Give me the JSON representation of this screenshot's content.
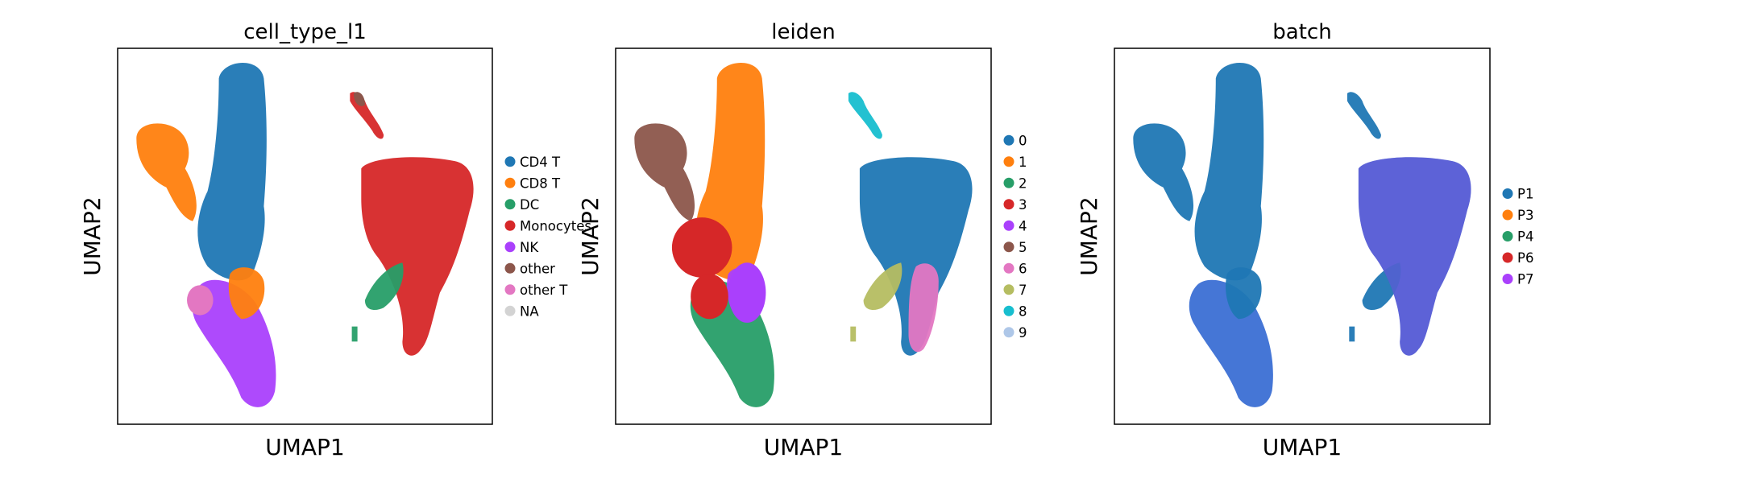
{
  "chart_data": [
    {
      "type": "scatter",
      "title": "cell_type_l1",
      "xlabel": "UMAP1",
      "ylabel": "UMAP2",
      "legend_position": "right",
      "legend_entries": [
        {
          "label": "CD4 T",
          "color": "#1f77b4"
        },
        {
          "label": "CD8 T",
          "color": "#ff7f0e"
        },
        {
          "label": "DC",
          "color": "#279e68"
        },
        {
          "label": "Monocytes",
          "color": "#d62728"
        },
        {
          "label": "NK",
          "color": "#aa40fc"
        },
        {
          "label": "other",
          "color": "#8c564b"
        },
        {
          "label": "other T",
          "color": "#e377c2"
        },
        {
          "label": "NA",
          "color": "#d3d3d3"
        }
      ]
    },
    {
      "type": "scatter",
      "title": "leiden",
      "xlabel": "UMAP1",
      "ylabel": "UMAP2",
      "legend_position": "right",
      "legend_entries": [
        {
          "label": "0",
          "color": "#1f77b4"
        },
        {
          "label": "1",
          "color": "#ff7f0e"
        },
        {
          "label": "2",
          "color": "#279e68"
        },
        {
          "label": "3",
          "color": "#d62728"
        },
        {
          "label": "4",
          "color": "#aa40fc"
        },
        {
          "label": "5",
          "color": "#8c564b"
        },
        {
          "label": "6",
          "color": "#e377c2"
        },
        {
          "label": "7",
          "color": "#b5bd61"
        },
        {
          "label": "8",
          "color": "#17becf"
        },
        {
          "label": "9",
          "color": "#aec7e8"
        }
      ]
    },
    {
      "type": "scatter",
      "title": "batch",
      "xlabel": "UMAP1",
      "ylabel": "UMAP2",
      "legend_position": "right",
      "legend_entries": [
        {
          "label": "P1",
          "color": "#1f77b4"
        },
        {
          "label": "P3",
          "color": "#ff7f0e"
        },
        {
          "label": "P4",
          "color": "#279e68"
        },
        {
          "label": "P6",
          "color": "#d62728"
        },
        {
          "label": "P7",
          "color": "#aa40fc"
        }
      ]
    }
  ]
}
